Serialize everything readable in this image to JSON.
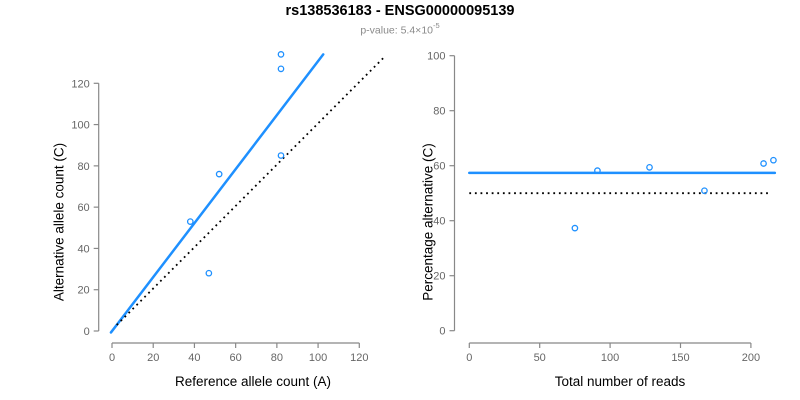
{
  "header": {
    "title": "rs138536183 - ENSG00000095139",
    "subtitle_prefix": "p-value: 5.4×10",
    "subtitle_exponent": "-5"
  },
  "colors": {
    "accent": "#1e90ff",
    "axis": "#888888",
    "tick_label": "#666666",
    "axis_label": "#000000",
    "subtitle": "#8a8a8a",
    "background": "#ffffff"
  },
  "chart_data": [
    {
      "type": "scatter",
      "panel": "left",
      "xlabel": "Reference allele count (A)",
      "ylabel": "Alternative allele count (C)",
      "xlim": [
        0,
        133
      ],
      "ylim": [
        0,
        137
      ],
      "grid": false,
      "point_style": "open-circle",
      "xticks": [
        0,
        20,
        40,
        60,
        80,
        100,
        120
      ],
      "yticks": [
        0,
        20,
        40,
        60,
        80,
        100,
        120
      ],
      "points": [
        [
          38,
          53
        ],
        [
          47,
          28
        ],
        [
          52,
          76
        ],
        [
          82,
          85
        ],
        [
          82,
          127
        ],
        [
          82,
          134
        ]
      ],
      "lines": [
        {
          "name": "regression-line",
          "meaning": "fitted allelic ratio",
          "x1": -0.5,
          "y1": -0.7,
          "x2": 102.5,
          "y2": 134,
          "style": "solid",
          "color": "#1e90ff"
        },
        {
          "name": "identity-line",
          "meaning": "y = x (balanced expression)",
          "x1": 2.3,
          "y1": 2.9,
          "x2": 132.6,
          "y2": 133.2,
          "style": "dotted",
          "color": "#000000"
        }
      ]
    },
    {
      "type": "scatter",
      "panel": "right",
      "xlabel": "Total number of reads",
      "ylabel": "Percentage alternative (C)",
      "xlim": [
        0,
        217
      ],
      "ylim": [
        0,
        100
      ],
      "grid": false,
      "point_style": "open-circle",
      "xticks": [
        0,
        50,
        100,
        150,
        200
      ],
      "yticks": [
        0,
        20,
        40,
        60,
        80,
        100
      ],
      "points": [
        [
          75,
          37.3
        ],
        [
          91,
          58.2
        ],
        [
          128,
          59.4
        ],
        [
          167,
          50.9
        ],
        [
          209,
          60.8
        ],
        [
          216,
          62
        ]
      ],
      "lines": [
        {
          "name": "fitted-percentage-line",
          "meaning": "mean alternative percentage",
          "x1": 0,
          "y1": 57.4,
          "x2": 217,
          "y2": 57.4,
          "style": "solid",
          "color": "#1e90ff"
        },
        {
          "name": "fifty-percent-line",
          "meaning": "50% balanced expression",
          "x1": 0,
          "y1": 50,
          "x2": 214,
          "y2": 50,
          "style": "dotted",
          "color": "#000000"
        }
      ]
    }
  ]
}
